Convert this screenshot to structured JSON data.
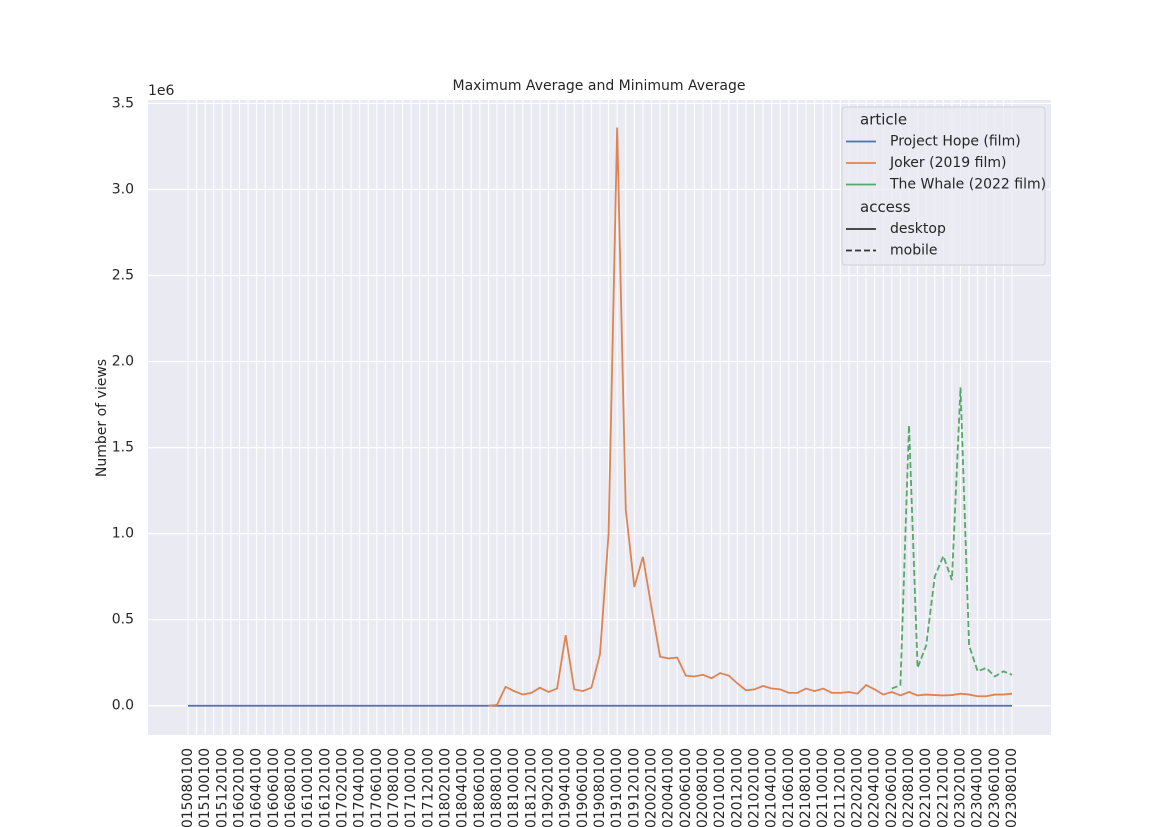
{
  "chart_data": {
    "type": "line",
    "title": "Maximum Average and Minimum Average",
    "y_label": "Number of views",
    "y_offset_label": "1e6",
    "categories": [
      "2015080100",
      null,
      "2015100100",
      null,
      "2015120100",
      null,
      "2016020100",
      null,
      "2016040100",
      null,
      "2016060100",
      null,
      "2016080100",
      null,
      "2016100100",
      null,
      "2016120100",
      null,
      "2017020100",
      null,
      "2017040100",
      null,
      "2017060100",
      null,
      "2017080100",
      null,
      "2017100100",
      null,
      "2017120100",
      null,
      "2018020100",
      null,
      "2018040100",
      null,
      "2018060100",
      null,
      "2018080100",
      null,
      "2018100100",
      null,
      "2018120100",
      null,
      "2019020100",
      null,
      "2019040100",
      null,
      "2019060100",
      null,
      "2019080100",
      null,
      "2019100100",
      null,
      "2019120100",
      null,
      "2020020100",
      null,
      "2020040100",
      null,
      "2020060100",
      null,
      "2020080100",
      null,
      "2020100100",
      null,
      "2020120100",
      null,
      "2021020100",
      null,
      "2021040100",
      null,
      "2021060100",
      null,
      "2021080100",
      null,
      "2021100100",
      null,
      "2021120100",
      null,
      "2022020100",
      null,
      "2022040100",
      null,
      "2022060100",
      null,
      "2022080100",
      null,
      "2022100100",
      null,
      "2022120100",
      null,
      "2023020100",
      null,
      "2023040100",
      null,
      "2023060100",
      null,
      "2023080100"
    ],
    "series": [
      {
        "name": "Project Hope (film)",
        "color": "#4c72b0",
        "access": "desktop",
        "values": [
          0,
          0,
          0,
          0,
          0,
          0,
          0,
          0,
          0,
          0,
          0,
          0,
          0,
          0,
          0,
          0,
          0,
          0,
          0,
          0,
          0,
          0,
          0,
          0,
          0,
          0,
          0,
          0,
          0,
          0,
          0,
          0,
          0,
          0,
          0,
          0,
          0,
          0,
          0,
          0,
          0,
          0,
          0,
          0,
          0,
          0,
          0,
          0,
          0,
          0,
          0,
          0,
          0,
          0,
          0,
          0,
          0,
          0,
          0,
          0,
          0,
          0,
          0,
          0,
          0,
          0,
          0,
          0,
          0,
          0,
          0,
          0,
          0,
          0,
          0,
          0,
          0,
          0,
          0,
          0,
          0,
          0,
          0,
          0,
          0,
          0,
          0,
          0,
          0,
          0,
          0,
          0,
          0,
          0,
          0,
          0,
          0
        ]
      },
      {
        "name": "Joker (2019 film)",
        "color": "#dd8452",
        "access": "desktop",
        "values": [
          null,
          null,
          null,
          null,
          null,
          null,
          null,
          null,
          null,
          null,
          null,
          null,
          null,
          null,
          null,
          null,
          null,
          null,
          null,
          null,
          null,
          null,
          null,
          null,
          null,
          null,
          null,
          null,
          null,
          null,
          null,
          null,
          null,
          null,
          null,
          0,
          0.005,
          0.11,
          0.085,
          0.065,
          0.075,
          0.105,
          0.08,
          0.1,
          0.41,
          0.095,
          0.085,
          0.105,
          0.3,
          1.0,
          3.36,
          1.14,
          0.69,
          0.865,
          0.57,
          0.285,
          0.275,
          0.28,
          0.175,
          0.17,
          0.18,
          0.16,
          0.19,
          0.175,
          0.13,
          0.09,
          0.095,
          0.115,
          0.1,
          0.095,
          0.075,
          0.075,
          0.1,
          0.085,
          0.1,
          0.075,
          0.075,
          0.08,
          0.07,
          0.12,
          0.095,
          0.065,
          0.08,
          0.06,
          0.08,
          0.06,
          0.065,
          0.062,
          0.06,
          0.062,
          0.07,
          0.065,
          0.055,
          0.055,
          0.065,
          0.065,
          0.07
        ]
      },
      {
        "name": "The Whale (2022 film)",
        "color": "#55a868",
        "access": "mobile",
        "values": [
          null,
          null,
          null,
          null,
          null,
          null,
          null,
          null,
          null,
          null,
          null,
          null,
          null,
          null,
          null,
          null,
          null,
          null,
          null,
          null,
          null,
          null,
          null,
          null,
          null,
          null,
          null,
          null,
          null,
          null,
          null,
          null,
          null,
          null,
          null,
          null,
          null,
          null,
          null,
          null,
          null,
          null,
          null,
          null,
          null,
          null,
          null,
          null,
          null,
          null,
          null,
          null,
          null,
          null,
          null,
          null,
          null,
          null,
          null,
          null,
          null,
          null,
          null,
          null,
          null,
          null,
          null,
          null,
          null,
          null,
          null,
          null,
          null,
          null,
          null,
          null,
          null,
          null,
          null,
          null,
          null,
          null,
          0.1,
          0.12,
          1.63,
          0.22,
          0.35,
          0.75,
          0.87,
          0.73,
          1.85,
          0.35,
          0.2,
          0.22,
          0.17,
          0.2,
          0.18
        ]
      }
    ],
    "hue_title": "article",
    "style_title": "access",
    "styles": [
      {
        "name": "desktop",
        "dash": "solid"
      },
      {
        "name": "mobile",
        "dash": "dashed"
      }
    ],
    "ylim": [
      -0.17,
      3.52
    ],
    "yticks": [
      {
        "value": 0,
        "label": "0.0"
      },
      0.5,
      {
        "value": 1,
        "label": "1.0"
      },
      1.5,
      {
        "value": 2,
        "label": "2.0"
      },
      2.5,
      {
        "value": 3,
        "label": "3.0"
      },
      3.5
    ],
    "grid": true,
    "legend": "upper right"
  }
}
